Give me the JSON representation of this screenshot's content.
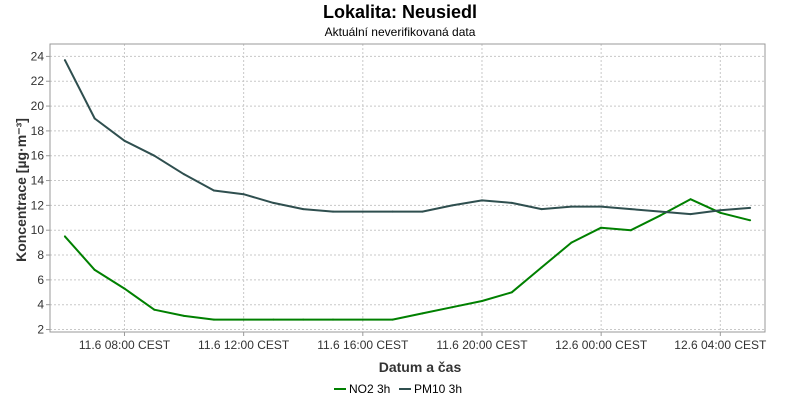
{
  "chart_data": {
    "type": "line",
    "title": "Lokalita: Neusiedl",
    "subtitle": "Aktuální neverifikovaná data",
    "xlabel": "Datum a čas",
    "ylabel": "Koncentrace [µg·m⁻³]",
    "ylim": [
      1.8,
      25
    ],
    "xlim": [
      -0.5,
      23.5
    ],
    "yticks": [
      2,
      4,
      6,
      8,
      10,
      12,
      14,
      16,
      18,
      20,
      22,
      24
    ],
    "xticks": [
      {
        "x": 2,
        "label": "11.6 08:00 CEST"
      },
      {
        "x": 6,
        "label": "11.6 12:00 CEST"
      },
      {
        "x": 10,
        "label": "11.6 16:00 CEST"
      },
      {
        "x": 14,
        "label": "11.6 20:00 CEST"
      },
      {
        "x": 18,
        "label": "12.6 00:00 CEST"
      },
      {
        "x": 22,
        "label": "12.6 04:00 CEST"
      }
    ],
    "grid": true,
    "legend_position": "bottom-center",
    "series": [
      {
        "name": "NO2 3h",
        "color": "#008000",
        "x": [
          0,
          1,
          2,
          3,
          4,
          5,
          6,
          7,
          8,
          9,
          10,
          11,
          12,
          13,
          14,
          15,
          16,
          17,
          18,
          19,
          20,
          21,
          22,
          23
        ],
        "values": [
          9.5,
          6.8,
          5.3,
          3.6,
          3.1,
          2.8,
          2.8,
          2.8,
          2.8,
          2.8,
          2.8,
          2.8,
          3.3,
          3.8,
          4.3,
          5.0,
          7.0,
          9.0,
          10.2,
          10.0,
          11.2,
          12.5,
          11.4,
          10.8
        ]
      },
      {
        "name": "PM10 3h",
        "color": "#2f4f4f",
        "x": [
          0,
          1,
          2,
          3,
          4,
          5,
          6,
          7,
          8,
          9,
          10,
          11,
          12,
          13,
          14,
          15,
          16,
          17,
          18,
          19,
          20,
          21,
          22,
          23
        ],
        "values": [
          23.7,
          19.0,
          17.2,
          16.0,
          14.5,
          13.2,
          12.9,
          12.2,
          11.7,
          11.5,
          11.5,
          11.5,
          11.5,
          12.0,
          12.4,
          12.2,
          11.7,
          11.9,
          11.9,
          11.7,
          11.5,
          11.3,
          11.6,
          11.8
        ]
      }
    ]
  }
}
